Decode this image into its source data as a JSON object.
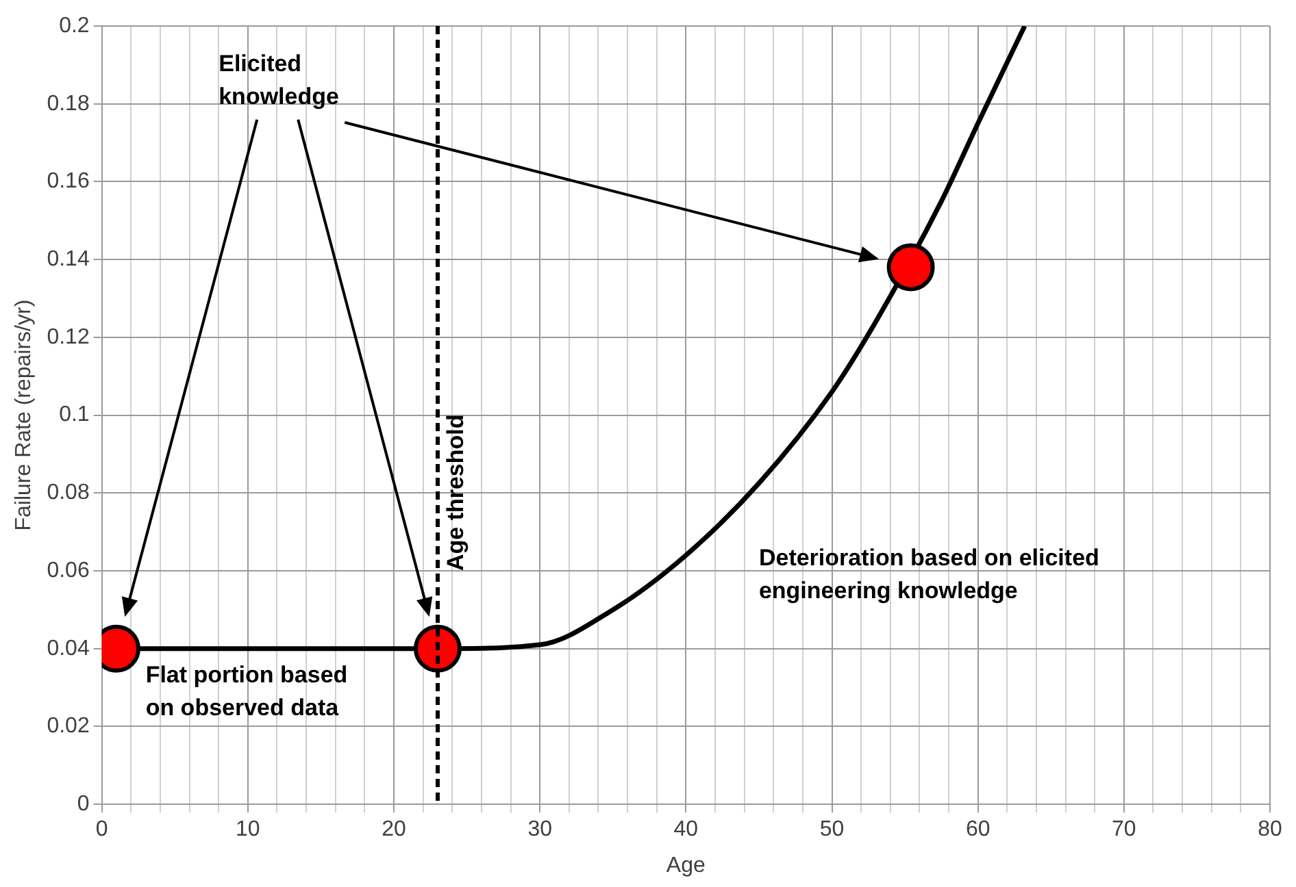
{
  "chart_data": {
    "type": "line",
    "xlabel": "Age",
    "ylabel": "Failure Rate (repairs/yr)",
    "xlim": [
      0,
      80
    ],
    "ylim": [
      0,
      0.2
    ],
    "xticks": [
      0,
      {
        "value": 2,
        "label": null
      },
      {
        "value": 4,
        "label": null
      },
      {
        "value": 6,
        "label": null
      },
      {
        "value": 8,
        "label": null
      },
      10,
      {
        "value": 12,
        "label": null
      },
      {
        "value": 14,
        "label": null
      },
      {
        "value": 16,
        "label": null
      },
      {
        "value": 18,
        "label": null
      },
      20,
      {
        "value": 22,
        "label": null
      },
      {
        "value": 24,
        "label": null
      },
      {
        "value": 26,
        "label": null
      },
      {
        "value": 28,
        "label": null
      },
      30,
      {
        "value": 32,
        "label": null
      },
      {
        "value": 34,
        "label": null
      },
      {
        "value": 36,
        "label": null
      },
      {
        "value": 38,
        "label": null
      },
      40,
      {
        "value": 42,
        "label": null
      },
      {
        "value": 44,
        "label": null
      },
      {
        "value": 46,
        "label": null
      },
      {
        "value": 48,
        "label": null
      },
      50,
      {
        "value": 52,
        "label": null
      },
      {
        "value": 54,
        "label": null
      },
      {
        "value": 56,
        "label": null
      },
      {
        "value": 58,
        "label": null
      },
      60,
      {
        "value": 62,
        "label": null
      },
      {
        "value": 64,
        "label": null
      },
      {
        "value": 66,
        "label": null
      },
      {
        "value": 68,
        "label": null
      },
      70,
      {
        "value": 72,
        "label": null
      },
      {
        "value": 74,
        "label": null
      },
      {
        "value": 76,
        "label": null
      },
      {
        "value": 78,
        "label": null
      },
      80
    ],
    "yticks": [
      0,
      0.02,
      0.04,
      0.06,
      0.08,
      0.1,
      0.12,
      0.14,
      0.16,
      0.18,
      0.2
    ],
    "grid": true,
    "legend": false,
    "series": [
      {
        "color": "#000000",
        "marker": "none",
        "line_style": "solid",
        "x": [
          2.6,
          23,
          30,
          35,
          40,
          45,
          50,
          53,
          57.5,
          60,
          63.2
        ],
        "values": [
          0.04,
          0.04,
          0.041,
          0.05,
          0.064,
          0.0825,
          0.106,
          0.124,
          0.155,
          0.175,
          0.2
        ]
      },
      {
        "type": "scatter",
        "color": "#ff0000",
        "marker": "circle",
        "x": [
          1,
          23,
          55.4
        ],
        "values": [
          0.04,
          0.04,
          0.138
        ]
      }
    ],
    "ref_lines": [
      {
        "axis": "x",
        "value": 23,
        "label": "Age threshold",
        "color": "#000000",
        "line_style": "dashed"
      }
    ],
    "annotations": [
      "Elicited\nknowledge",
      "Flat portion based\non observed data",
      "Deterioration based on elicited\nengineering knowledge"
    ]
  }
}
